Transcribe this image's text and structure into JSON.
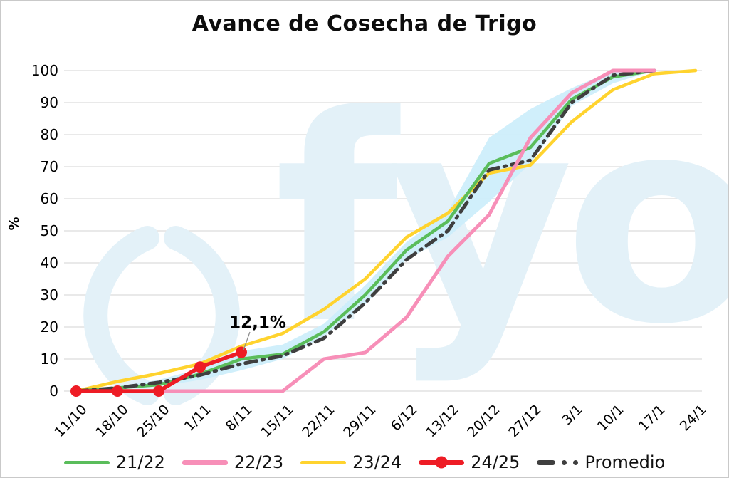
{
  "chart_data": {
    "type": "line",
    "title": "Avance de Cosecha de Trigo",
    "ylabel": "%",
    "ylim": [
      0,
      100
    ],
    "y_ticks": [
      0,
      10,
      20,
      30,
      40,
      50,
      60,
      70,
      80,
      90,
      100
    ],
    "grid": true,
    "grid_color": "#dcdcdc",
    "background": "#ffffff",
    "watermark": "fyo",
    "watermark_color": "#e3f1f8",
    "legend_position": "bottom",
    "categories": [
      "11/10",
      "18/10",
      "25/10",
      "1/11",
      "8/11",
      "15/11",
      "22/11",
      "29/11",
      "6/12",
      "13/12",
      "20/12",
      "27/12",
      "3/1",
      "10/1",
      "17/1",
      "24/1"
    ],
    "series": [
      {
        "name": "21/22",
        "color": "#5abd5b",
        "width": 4.5,
        "style": "solid",
        "values": [
          0,
          1,
          2,
          5.3,
          10,
          11.5,
          18.5,
          30,
          44,
          53,
          71,
          76,
          91,
          98,
          100,
          null
        ]
      },
      {
        "name": "22/23",
        "color": "#f78fb8",
        "width": 5,
        "style": "solid",
        "values": [
          0,
          0,
          0,
          0,
          0,
          0,
          10,
          12,
          23,
          42,
          55,
          79,
          93,
          100,
          100,
          null
        ]
      },
      {
        "name": "23/24",
        "color": "#ffd32e",
        "width": 4.5,
        "style": "solid",
        "values": [
          0,
          3,
          5.5,
          8.5,
          14,
          18,
          25.5,
          35,
          48,
          55.5,
          68,
          70.5,
          84,
          94,
          99,
          100
        ]
      },
      {
        "name": "24/25",
        "color": "#ee1c25",
        "width": 5.5,
        "style": "solid",
        "markers": true,
        "marker_r": 8,
        "values": [
          0,
          0,
          0,
          7.5,
          12.1,
          null,
          null,
          null,
          null,
          null,
          null,
          null,
          null,
          null,
          null,
          null
        ]
      },
      {
        "name": "Promedio",
        "color": "#3f3f3f",
        "width": 5,
        "style": "dash-dot",
        "dash": "16 8 2.5 8",
        "values": [
          0,
          1,
          2.7,
          5,
          8.5,
          11,
          16.5,
          27.5,
          41,
          50,
          69,
          72,
          90,
          98.5,
          100,
          null
        ]
      }
    ],
    "band": {
      "label": "min-max range",
      "color": "#cceefb",
      "lower": [
        0,
        0.5,
        1.5,
        3.5,
        6.5,
        10,
        17,
        27,
        41,
        48,
        59,
        71,
        89,
        96,
        100,
        null
      ],
      "upper": [
        0,
        1.5,
        3.5,
        7,
        12.5,
        14.5,
        21,
        33,
        46.5,
        56,
        79,
        88,
        94.5,
        100,
        100,
        null
      ]
    },
    "annotation": {
      "text": "12,1%",
      "series": "24/25",
      "category": "8/11",
      "value": 12.1
    }
  }
}
